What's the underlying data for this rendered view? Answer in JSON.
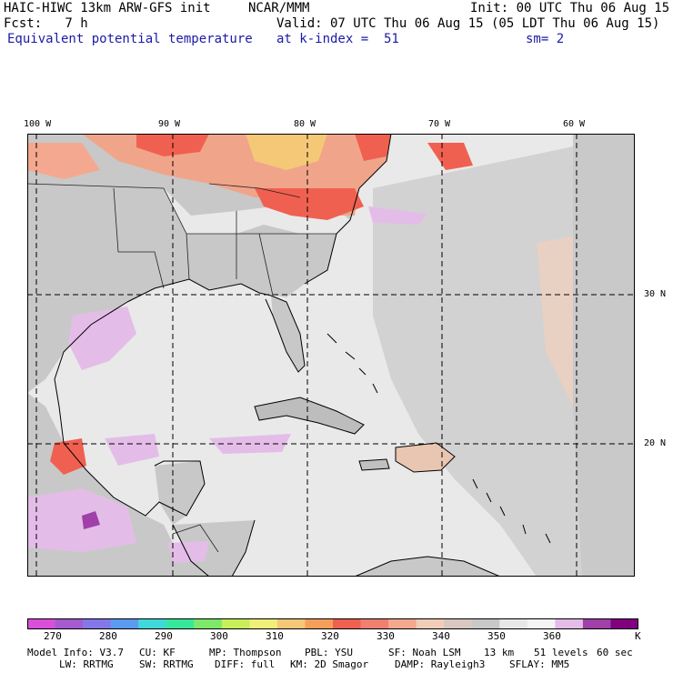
{
  "header": {
    "model_title": "HAIC-HIWC 13km ARW-GFS init",
    "org": "NCAR/MMM",
    "init": "Init: 00 UTC Thu 06 Aug 15",
    "fcst": "Fcst:   7 h",
    "valid": "Valid: 07 UTC Thu 06 Aug 15 (05 LDT Thu 06 Aug 15)",
    "field": "Equivalent potential temperature",
    "level": "at k-index =  51",
    "smooth": "sm= 2"
  },
  "map": {
    "lon_labels": [
      "100 W",
      "90 W",
      "80 W",
      "70 W",
      "60 W"
    ],
    "lat_labels": [
      "30 N",
      "20 N"
    ],
    "colors": {
      "ocean": "#e9e9e9",
      "land": "#c8c8c8",
      "gridline": "#000000",
      "coast": "#000000"
    }
  },
  "colorbar": {
    "colors": [
      "#d94fd9",
      "#a65bd0",
      "#8378e8",
      "#5b9bf0",
      "#3fd9d9",
      "#38e89a",
      "#7de86a",
      "#c6ef5a",
      "#eef07a",
      "#f5c878",
      "#f5a05a",
      "#f06050",
      "#f08070",
      "#f4a890",
      "#f0cdb8",
      "#d8c8c0",
      "#c8c8c8",
      "#e8e8e8",
      "#f4f4f4",
      "#e3bde8",
      "#a040a8",
      "#800080"
    ],
    "ticks": [
      "270",
      "280",
      "290",
      "300",
      "310",
      "320",
      "330",
      "340",
      "350",
      "360"
    ],
    "unit": "K"
  },
  "footer": {
    "line1": [
      "Model Info: V3.7",
      "CU: KF",
      "MP: Thompson",
      "PBL: YSU",
      "SF: Noah LSM",
      "13 km",
      "51 levels",
      "60 sec"
    ],
    "line2": [
      "LW: RRTMG",
      "SW: RRTMG",
      "DIFF: full",
      "KM: 2D Smagor",
      "DAMP: Rayleigh3",
      "SFLAY: MM5"
    ]
  }
}
